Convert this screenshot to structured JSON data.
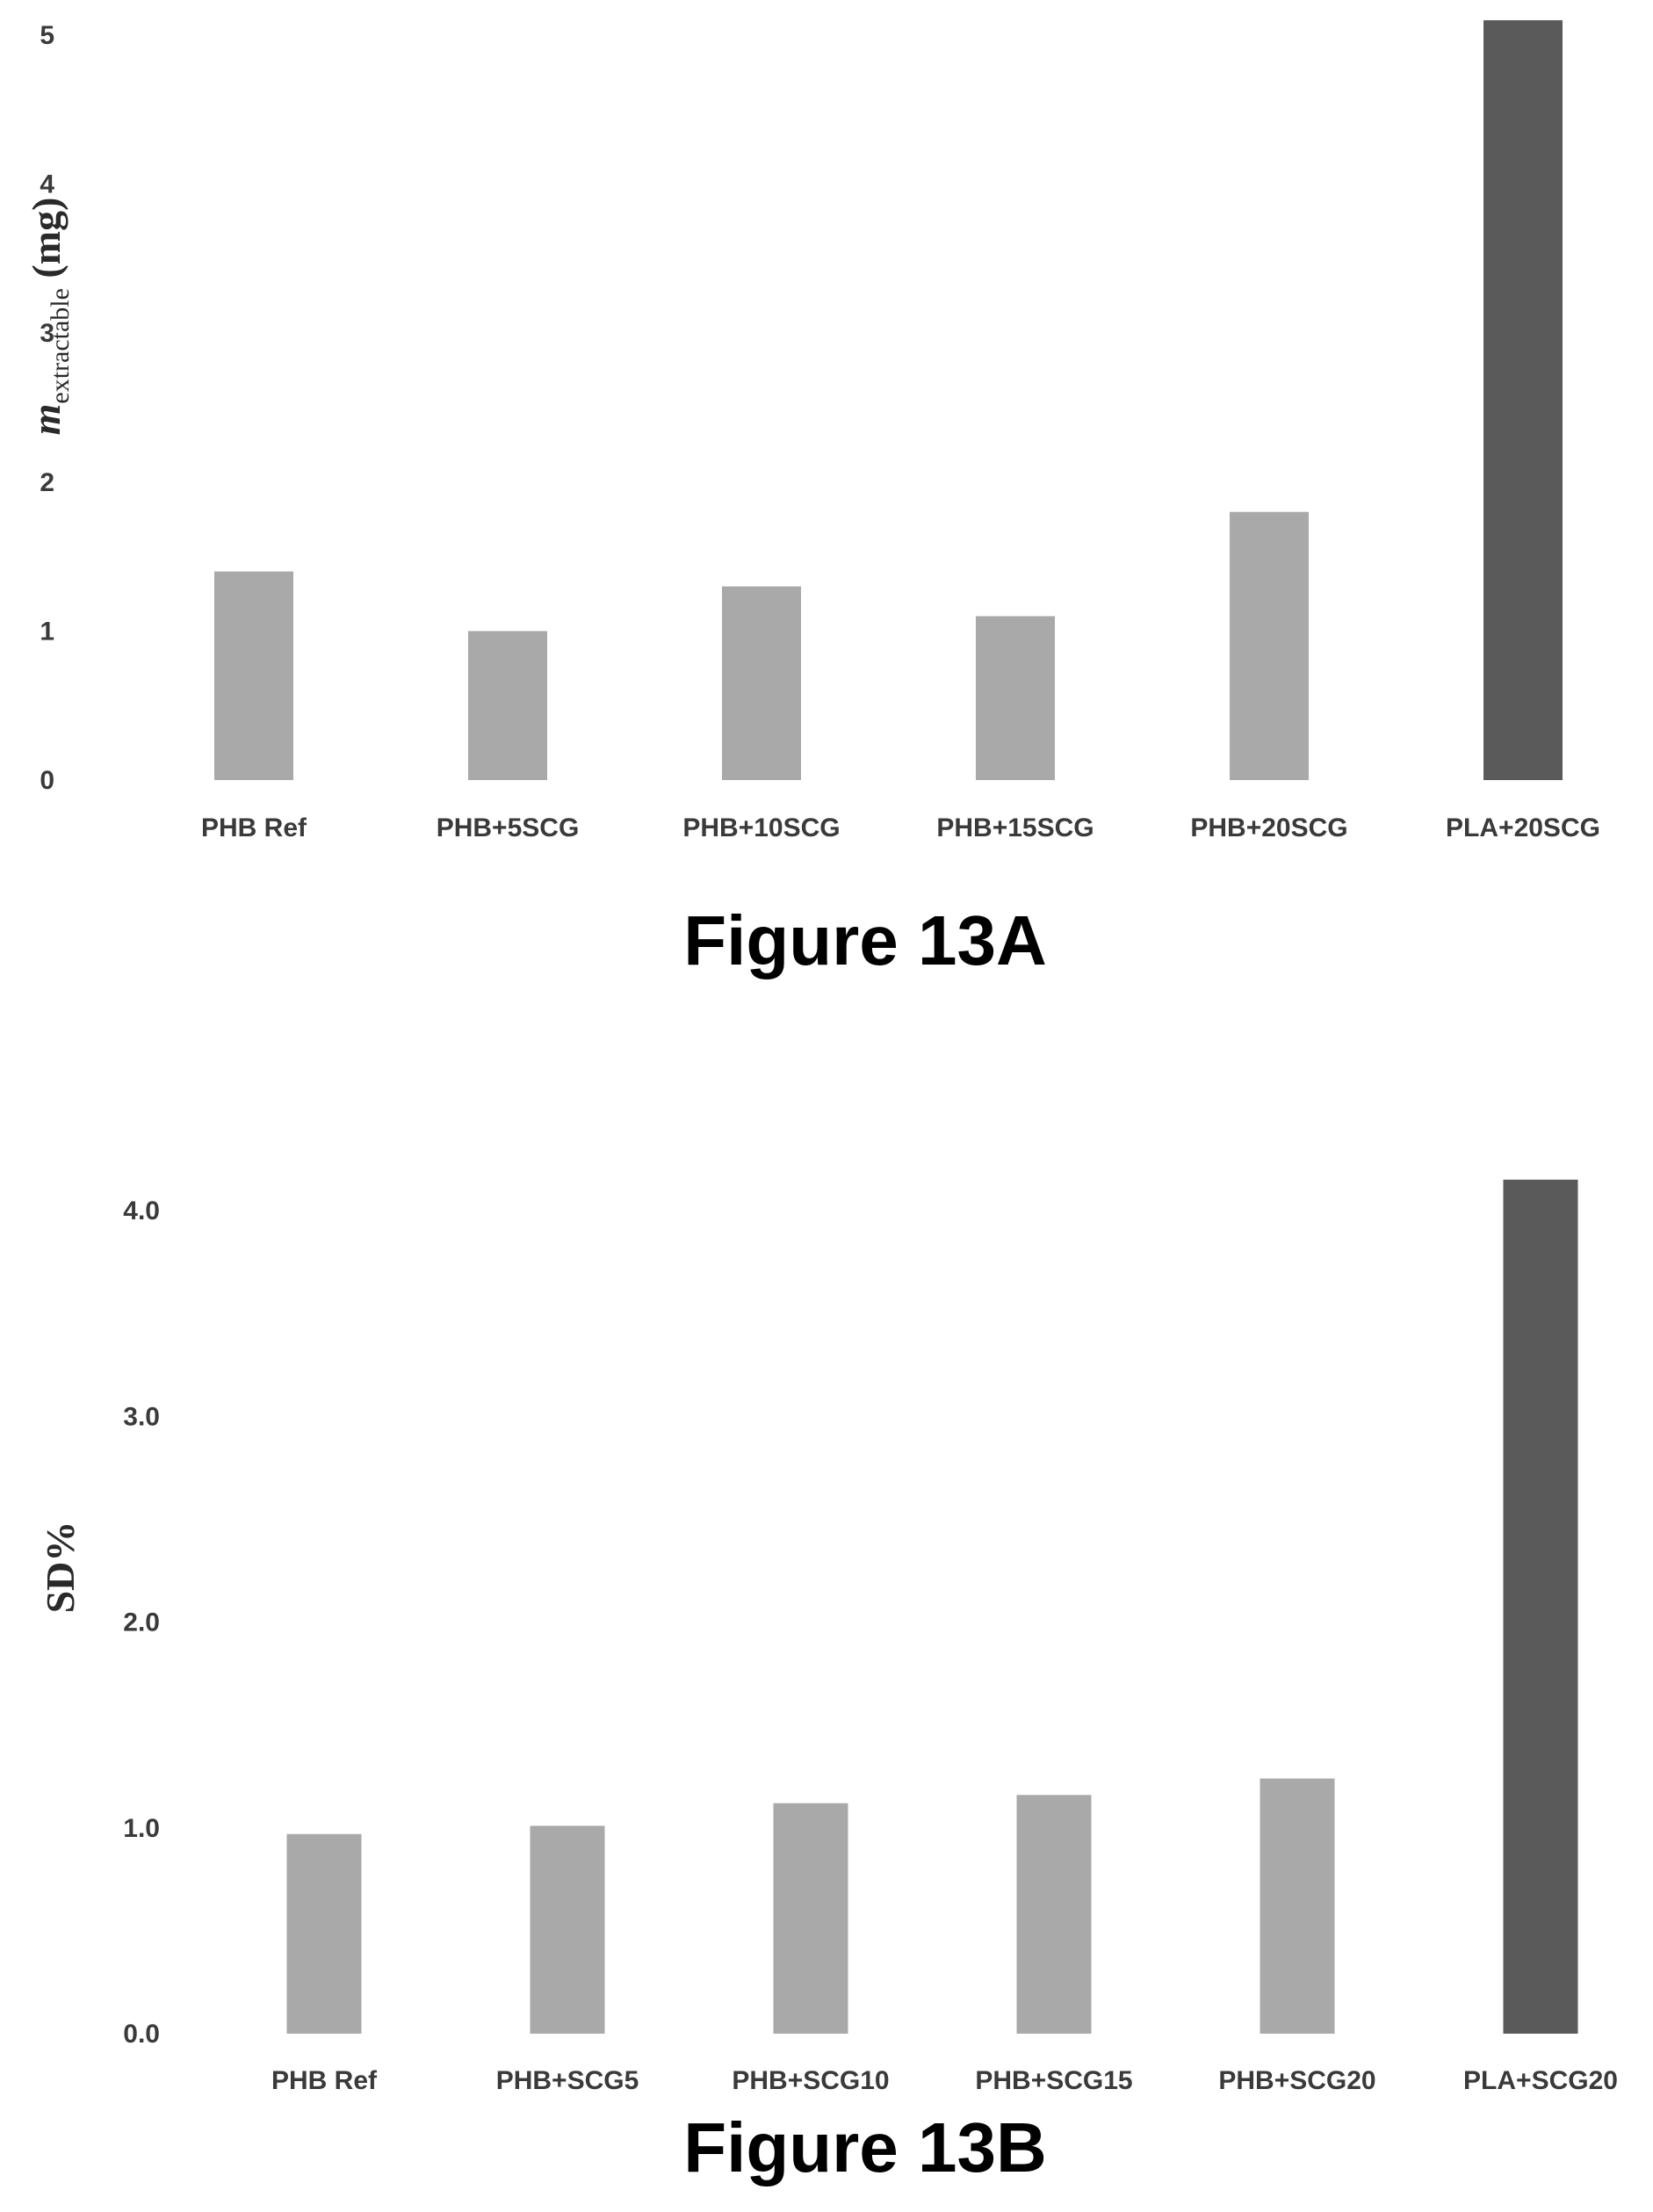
{
  "colors": {
    "bar_light": "#a9a9a9",
    "bar_dark": "#5a5a5a",
    "text": "#3a3a3a"
  },
  "chart_data": [
    {
      "type": "bar",
      "caption": "Figure 13A",
      "ylabel": {
        "main": "m",
        "sub": "extractable",
        "unit": " (mg)"
      },
      "xlabel": "",
      "ylim": [
        0,
        5
      ],
      "yticks": [
        "0",
        "1",
        "2",
        "3",
        "4",
        "5"
      ],
      "grid": false,
      "categories": [
        "PHB Ref",
        "PHB+5SCG",
        "PHB+10SCG",
        "PHB+15SCG",
        "PHB+20SCG",
        "PLA+20SCG"
      ],
      "values": [
        1.4,
        1.0,
        1.3,
        1.1,
        1.8,
        5.1
      ]
    },
    {
      "type": "bar",
      "caption": "Figure 13B",
      "ylabel": {
        "main": "SD%",
        "sub": "",
        "unit": ""
      },
      "xlabel": "",
      "ylim": [
        0,
        4
      ],
      "yticks": [
        "0.0",
        "1.0",
        "2.0",
        "3.0",
        "4.0"
      ],
      "grid": false,
      "categories": [
        "PHB Ref",
        "PHB+SCG5",
        "PHB+SCG10",
        "PHB+SCG15",
        "PHB+SCG20",
        "PLA+SCG20"
      ],
      "values": [
        0.97,
        1.01,
        1.12,
        1.16,
        1.24,
        4.15
      ]
    }
  ]
}
